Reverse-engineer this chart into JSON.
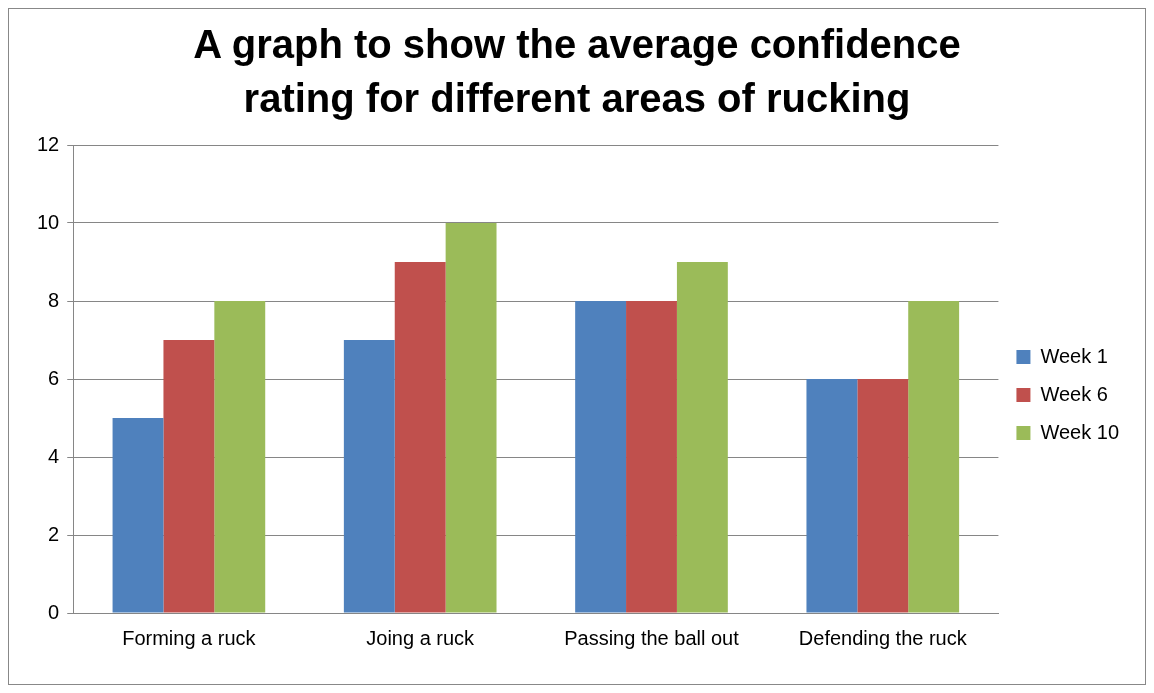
{
  "chart_data": {
    "type": "bar",
    "title": "A graph to show the average confidence rating for different areas of rucking",
    "categories": [
      "Forming a ruck",
      "Joing a ruck",
      "Passing the ball out",
      "Defending the ruck"
    ],
    "series": [
      {
        "name": "Week 1",
        "color": "#4f81bd",
        "values": [
          5,
          7,
          8,
          6
        ]
      },
      {
        "name": "Week 6",
        "color": "#c0504d",
        "values": [
          7,
          9,
          8,
          6
        ]
      },
      {
        "name": "Week 10",
        "color": "#9bbb59",
        "values": [
          8,
          10,
          9,
          8
        ]
      }
    ],
    "ylim": [
      0,
      12
    ],
    "yticks": [
      0,
      2,
      4,
      6,
      8,
      10,
      12
    ],
    "grid": "y",
    "legend": "right"
  }
}
